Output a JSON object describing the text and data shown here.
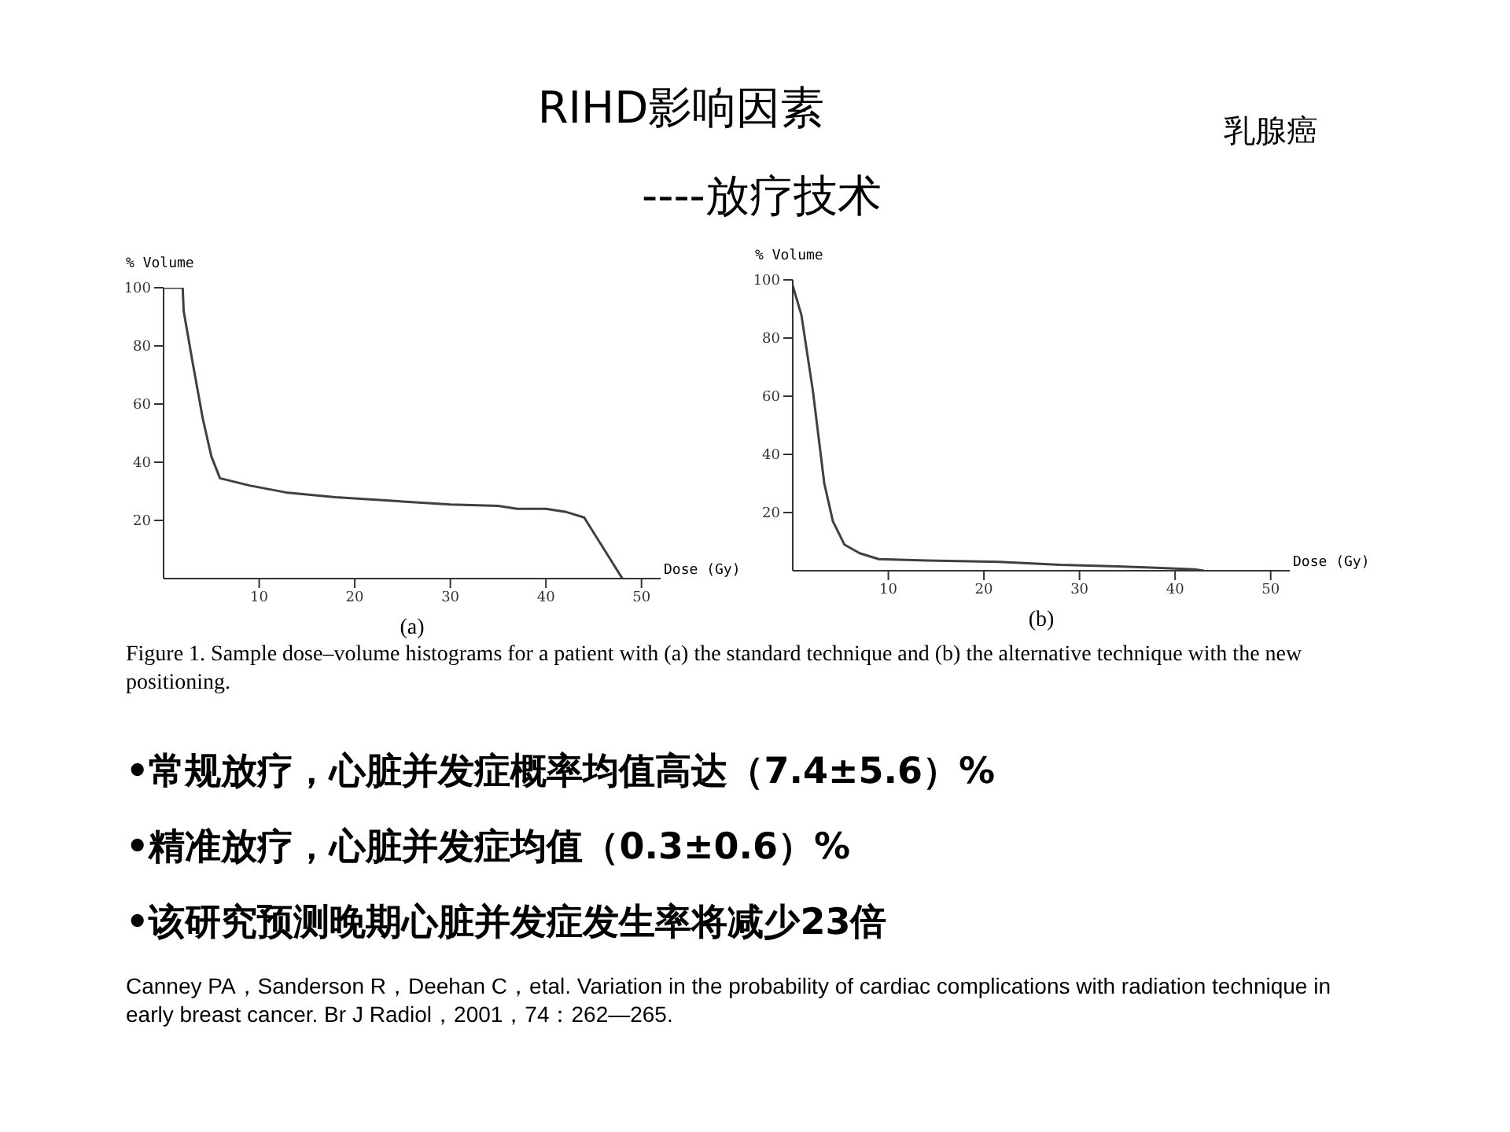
{
  "chart_data": [
    {
      "type": "line",
      "title": "RIHD影响因素",
      "subtitle": "----放疗技术",
      "xlabel": "Dose (Gy)",
      "ylabel": "% Volume",
      "xlim": [
        0,
        52
      ],
      "xticks": [
        10,
        20,
        30,
        40,
        50
      ],
      "ylim": [
        0,
        100
      ],
      "yticks": [
        20,
        40,
        60,
        80,
        100
      ],
      "grid": false,
      "legend": false,
      "marker": "none",
      "line_style": "solid",
      "series": [
        {
          "color": "#404040",
          "x": [
            0,
            2,
            2.1,
            3,
            4.1,
            5,
            5.9,
            9,
            13,
            18,
            25,
            30,
            35,
            37,
            40,
            42,
            44,
            48
          ],
          "values": [
            100,
            100,
            92,
            75,
            55,
            42,
            34.5,
            32,
            29.5,
            28,
            26.5,
            25.5,
            25,
            24,
            24,
            23,
            21,
            0
          ]
        }
      ],
      "annotations": [
        "(a)",
        "乳腺癌",
        "Figure 1. Sample dose–volume histograms for a patient with (a) the standard technique and (b) the alternative technique with the new positioning.",
        "•常规放疗，心脏并发症概率均值高达（7.4±5.6）%",
        "•精准放疗，心脏并发症均值（0.3±0.6）%",
        "•该研究预测晚期心脏并发症发生率将减少23倍",
        "Canney PA，Sanderson R，Deehan C，etal.  Variation in the probability of cardiac complications with radiation technique in early breast cancer.  Br J Radiol，2001，74：262—265."
      ]
    },
    {
      "type": "line",
      "xlabel": "Dose (Gy)",
      "ylabel": "% Volume",
      "xlim": [
        0,
        52
      ],
      "xticks": [
        10,
        20,
        30,
        40,
        50
      ],
      "ylim": [
        0,
        100
      ],
      "yticks": [
        20,
        40,
        60,
        80,
        100
      ],
      "grid": false,
      "legend": false,
      "marker": "none",
      "line_style": "solid",
      "series": [
        {
          "color": "#404040",
          "x": [
            0,
            0.9,
            2.1,
            3.3,
            4.2,
            5.4,
            7,
            9,
            14,
            22,
            28,
            34,
            38,
            42,
            43
          ],
          "values": [
            98,
            88,
            62,
            30,
            17,
            9,
            6,
            4,
            3.5,
            3,
            2,
            1.5,
            1,
            0.5,
            0
          ]
        }
      ],
      "annotations": [
        "(b)"
      ]
    }
  ]
}
